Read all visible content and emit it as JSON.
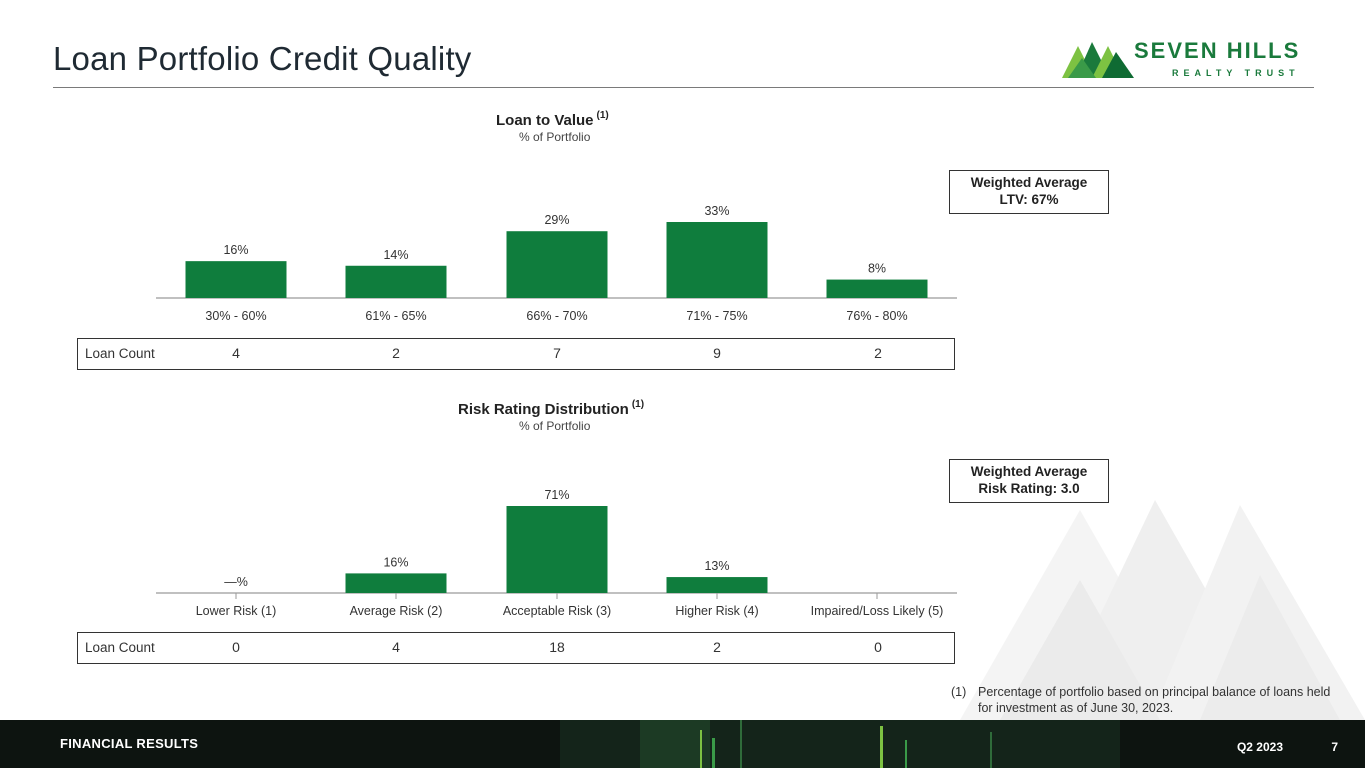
{
  "page": {
    "title": "Loan Portfolio Credit Quality"
  },
  "logo": {
    "name": "SEVEN HILLS",
    "sub": "REALTY TRUST",
    "icon": "mountains-logo-icon",
    "color": "#1a7a3c"
  },
  "colors": {
    "bar": "#0f7d3d",
    "accent_light": "#7dc242"
  },
  "ltv": {
    "weighted_average": [
      "Weighted Average",
      "LTV: 67%"
    ],
    "loan_count_label": "Loan Count",
    "loan_counts": [
      "4",
      "2",
      "7",
      "9",
      "2"
    ]
  },
  "risk": {
    "weighted_average": [
      "Weighted Average",
      "Risk Rating: 3.0"
    ],
    "loan_count_label": "Loan Count",
    "loan_counts": [
      "0",
      "4",
      "18",
      "2",
      "0"
    ]
  },
  "chart_data": [
    {
      "type": "bar",
      "title": "Loan to Value",
      "title_note": "(1)",
      "subtitle": "% of Portfolio",
      "categories": [
        "30% - 60%",
        "61% - 65%",
        "66% - 70%",
        "71% - 75%",
        "76% - 80%"
      ],
      "values": [
        16,
        14,
        29,
        33,
        8
      ],
      "value_labels": [
        "16%",
        "14%",
        "29%",
        "33%",
        "8%"
      ],
      "ylim": [
        0,
        33
      ],
      "grid": false,
      "legend": "none"
    },
    {
      "type": "bar",
      "title": "Risk Rating Distribution",
      "title_note": "(1)",
      "subtitle": "% of Portfolio",
      "categories": [
        "Lower Risk (1)",
        "Average Risk (2)",
        "Acceptable Risk (3)",
        "Higher Risk (4)",
        "Impaired/Loss Likely (5)"
      ],
      "values": [
        0,
        16,
        71,
        13,
        0
      ],
      "value_labels": [
        "—%",
        "16%",
        "71%",
        "13%",
        ""
      ],
      "ylim": [
        0,
        71
      ],
      "grid": false,
      "legend": "none"
    }
  ],
  "footnote": {
    "mark": "(1)",
    "text": "Percentage of portfolio based on principal balance of loans held for investment as of June 30, 2023."
  },
  "footer": {
    "section": "FINANCIAL RESULTS",
    "period": "Q2 2023",
    "page_number": "7"
  }
}
